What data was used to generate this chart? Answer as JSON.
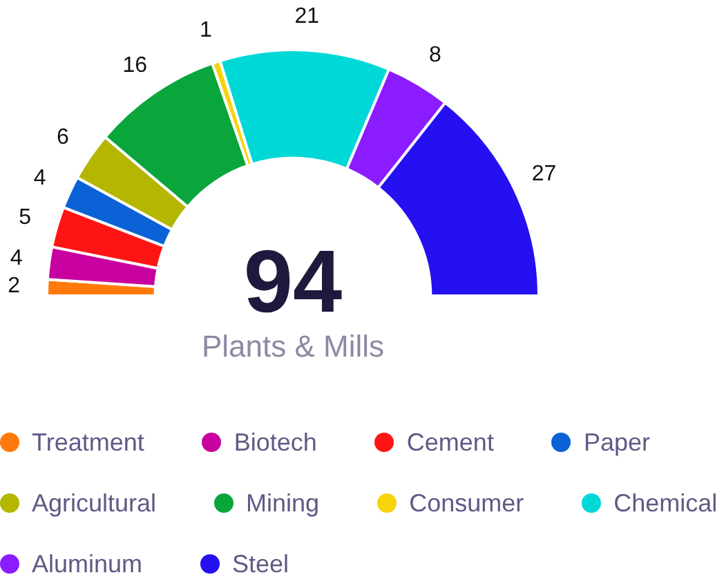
{
  "chart_data": {
    "type": "donut",
    "categories": [
      "Treatment",
      "Biotech",
      "Cement",
      "Paper",
      "Agricultural",
      "Mining",
      "Consumer",
      "Chemical",
      "Aluminum",
      "Steel"
    ],
    "values": [
      2,
      4,
      5,
      4,
      6,
      16,
      1,
      21,
      8,
      27
    ],
    "colors": [
      "#ff7a0a",
      "#c8009f",
      "#ff1414",
      "#0a62d6",
      "#b4b600",
      "#0aa63c",
      "#f6d40c",
      "#00d8d8",
      "#8a1cff",
      "#2410f0"
    ],
    "data_labels": true,
    "legend": "bottom",
    "annotations": [
      "94",
      "Plants & Mills"
    ]
  }
}
